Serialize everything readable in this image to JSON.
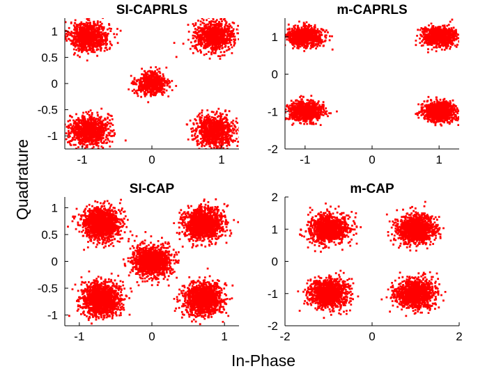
{
  "figure": {
    "xlabel": "In-Phase",
    "ylabel": "Quadrature",
    "point_color": "#ff0000",
    "axis_color": "#000000"
  },
  "chart_data": [
    {
      "type": "scatter",
      "title": "SI-CAPRLS",
      "xlim": [
        -1.25,
        1.25
      ],
      "ylim": [
        -1.25,
        1.25
      ],
      "xticks": [
        -1,
        0,
        1
      ],
      "xtick_labels": [
        "-1",
        "0",
        "1"
      ],
      "yticks": [
        -1,
        -0.5,
        0,
        0.5,
        1
      ],
      "ytick_labels": [
        "-1",
        "-0.5",
        "0",
        "0.5",
        "1"
      ],
      "grid": false,
      "series": [
        {
          "type": "cluster",
          "center": [
            -0.9,
            0.9
          ],
          "spread": [
            0.14,
            0.14
          ],
          "count": 900,
          "values": []
        },
        {
          "type": "cluster",
          "center": [
            0.9,
            0.9
          ],
          "spread": [
            0.14,
            0.14
          ],
          "count": 900,
          "values": []
        },
        {
          "type": "cluster",
          "center": [
            0,
            0
          ],
          "spread": [
            0.11,
            0.11
          ],
          "count": 600,
          "values": []
        },
        {
          "type": "cluster",
          "center": [
            -0.9,
            -0.9
          ],
          "spread": [
            0.14,
            0.14
          ],
          "count": 900,
          "values": []
        },
        {
          "type": "cluster",
          "center": [
            0.9,
            -0.9
          ],
          "spread": [
            0.14,
            0.14
          ],
          "count": 900,
          "values": []
        }
      ]
    },
    {
      "type": "scatter",
      "title": "m-CAPRLS",
      "xlim": [
        -1.3,
        1.3
      ],
      "ylim": [
        -2,
        1.5
      ],
      "xticks": [
        -1,
        0,
        1
      ],
      "xtick_labels": [
        "-1",
        "0",
        "1"
      ],
      "yticks": [
        -2,
        -1,
        0,
        1
      ],
      "ytick_labels": [
        "-2",
        "-1",
        "0",
        "1"
      ],
      "grid": false,
      "series": [
        {
          "type": "cluster",
          "center": [
            -1,
            1
          ],
          "spread": [
            0.13,
            0.13
          ],
          "count": 800,
          "values": []
        },
        {
          "type": "cluster",
          "center": [
            1,
            1
          ],
          "spread": [
            0.13,
            0.13
          ],
          "count": 800,
          "values": []
        },
        {
          "type": "cluster",
          "center": [
            -1,
            -1
          ],
          "spread": [
            0.13,
            0.13
          ],
          "count": 800,
          "values": []
        },
        {
          "type": "cluster",
          "center": [
            1,
            -1
          ],
          "spread": [
            0.13,
            0.13
          ],
          "count": 800,
          "values": []
        }
      ]
    },
    {
      "type": "scatter",
      "title": "SI-CAP",
      "xlim": [
        -1.2,
        1.2
      ],
      "ylim": [
        -1.2,
        1.2
      ],
      "xticks": [
        -1,
        0,
        1
      ],
      "xtick_labels": [
        "-1",
        "0",
        "1"
      ],
      "yticks": [
        -1,
        -0.5,
        0,
        0.5,
        1
      ],
      "ytick_labels": [
        "-1",
        "-0.5",
        "0",
        "0.5",
        "1"
      ],
      "grid": false,
      "series": [
        {
          "type": "cluster",
          "center": [
            -0.7,
            0.7
          ],
          "spread": [
            0.13,
            0.15
          ],
          "count": 1300,
          "values": []
        },
        {
          "type": "cluster",
          "center": [
            0.7,
            0.7
          ],
          "spread": [
            0.13,
            0.15
          ],
          "count": 1300,
          "values": []
        },
        {
          "type": "cluster",
          "center": [
            0,
            0
          ],
          "spread": [
            0.13,
            0.14
          ],
          "count": 1300,
          "values": []
        },
        {
          "type": "cluster",
          "center": [
            -0.7,
            -0.7
          ],
          "spread": [
            0.13,
            0.15
          ],
          "count": 1300,
          "values": []
        },
        {
          "type": "cluster",
          "center": [
            0.7,
            -0.7
          ],
          "spread": [
            0.13,
            0.15
          ],
          "count": 1300,
          "values": []
        }
      ]
    },
    {
      "type": "scatter",
      "title": "m-CAP",
      "xlim": [
        -2,
        2
      ],
      "ylim": [
        -2,
        2
      ],
      "xticks": [
        -2,
        0,
        2
      ],
      "xtick_labels": [
        "-2",
        "0",
        "2"
      ],
      "yticks": [
        -2,
        -1,
        0,
        1,
        2
      ],
      "ytick_labels": [
        "-2",
        "-1",
        "0",
        "1",
        "2"
      ],
      "grid": false,
      "series": [
        {
          "type": "cluster",
          "center": [
            -1,
            1
          ],
          "spread": [
            0.22,
            0.22
          ],
          "count": 1100,
          "values": []
        },
        {
          "type": "cluster",
          "center": [
            1,
            1
          ],
          "spread": [
            0.22,
            0.22
          ],
          "count": 1100,
          "values": []
        },
        {
          "type": "cluster",
          "center": [
            -1,
            -1
          ],
          "spread": [
            0.22,
            0.22
          ],
          "count": 1100,
          "values": []
        },
        {
          "type": "cluster",
          "center": [
            1,
            -1
          ],
          "spread": [
            0.22,
            0.22
          ],
          "count": 1100,
          "values": []
        }
      ]
    }
  ]
}
